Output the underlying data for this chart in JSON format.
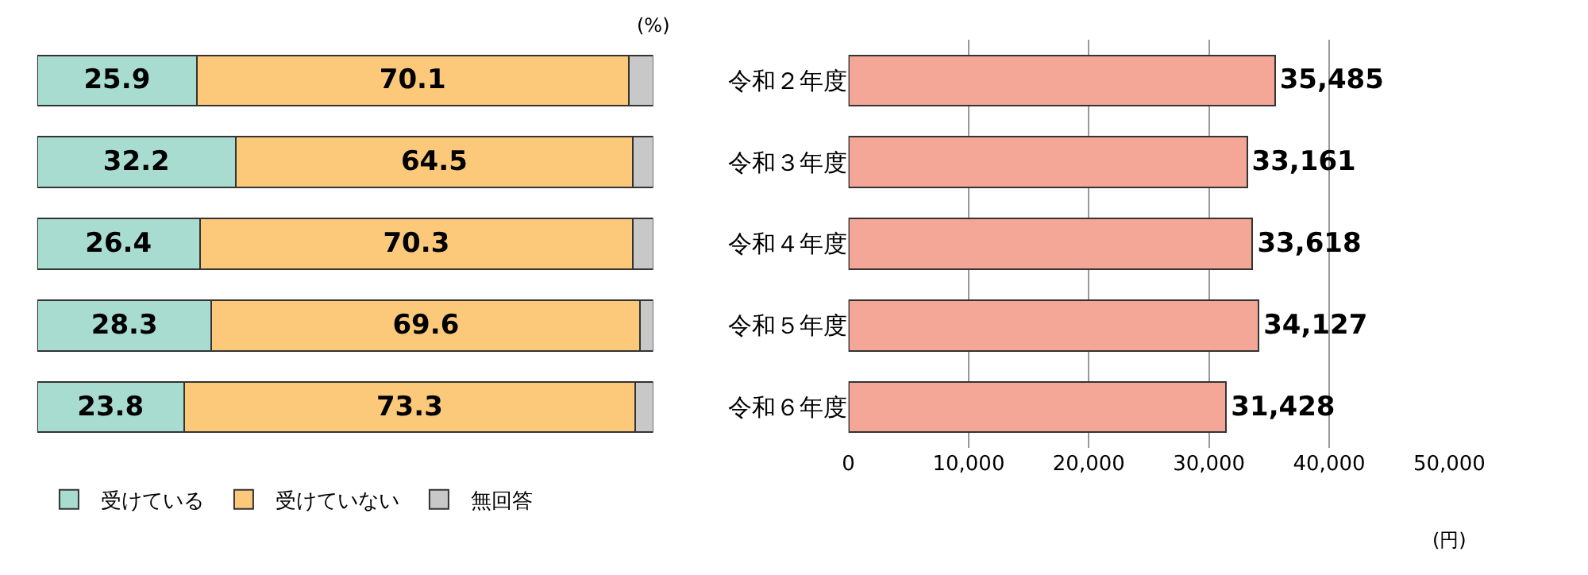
{
  "chart_data": [
    {
      "type": "bar",
      "orientation": "horizontal",
      "stacked": true,
      "categories": [
        null,
        null,
        null,
        null,
        null
      ],
      "tick_labels": false,
      "legend": "bottom",
      "grid": false,
      "annotations": [
        "(%)"
      ],
      "series": [
        {
          "name": "受けている",
          "color": "#a8dcd1",
          "values": [
            25.9,
            32.2,
            26.4,
            28.3,
            23.8
          ],
          "value_labels": [
            "25.9",
            "32.2",
            "26.4",
            "28.3",
            "23.8"
          ]
        },
        {
          "name": "受けていない",
          "color": "#fcc97a",
          "values": [
            70.1,
            64.5,
            70.3,
            69.6,
            73.3
          ],
          "value_labels": [
            "70.1",
            "64.5",
            "70.3",
            "69.6",
            "73.3"
          ]
        },
        {
          "name": "無回答",
          "color": "#c8c8c8",
          "values": [
            4.0,
            3.3,
            3.3,
            2.1,
            2.9
          ],
          "value_labels": [
            null,
            null,
            null,
            null,
            null
          ]
        }
      ]
    },
    {
      "type": "bar",
      "orientation": "horizontal",
      "categories": [
        "令和２年度",
        "令和３年度",
        "令和４年度",
        "令和５年度",
        "令和６年度"
      ],
      "values": [
        35485,
        33161,
        33618,
        34127,
        31428
      ],
      "color": "#f4a797",
      "value_labels": [
        "35,485",
        "33,161",
        "33,618",
        "34,127",
        "31,428"
      ],
      "xlim": [
        0,
        50000
      ],
      "xticks": [
        0,
        {
          "value": 10000,
          "label": "10,000"
        },
        {
          "value": 20000,
          "label": "20,000"
        },
        {
          "value": 30000,
          "label": "30,000"
        },
        {
          "value": 40000,
          "label": "40,000"
        },
        {
          "value": 50000,
          "label": "50,000"
        }
      ],
      "grid": "x",
      "annotations": [
        "(円)"
      ]
    }
  ]
}
